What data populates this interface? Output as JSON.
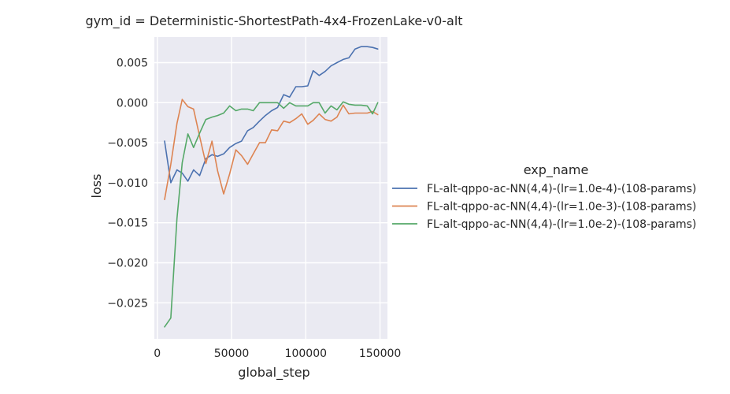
{
  "chart_data": {
    "type": "line",
    "title": "gym_id = Deterministic-ShortestPath-4x4-FrozenLake-v0-alt",
    "xlabel": "global_step",
    "ylabel": "loss",
    "xlim": [
      -2000,
      155000
    ],
    "ylim": [
      -0.0295,
      0.0082
    ],
    "x_ticks": [
      0,
      50000,
      100000,
      150000
    ],
    "x_tick_labels": [
      "0",
      "50000",
      "100000",
      "150000"
    ],
    "y_ticks": [
      -0.025,
      -0.02,
      -0.015,
      -0.01,
      -0.005,
      0.0,
      0.005
    ],
    "y_tick_labels": [
      "−0.025",
      "−0.020",
      "−0.015",
      "−0.010",
      "−0.005",
      "0.000",
      "0.005"
    ],
    "grid": true,
    "legend": {
      "title": "exp_name",
      "placement": "outside-right"
    },
    "series": [
      {
        "name": "FL-alt-qppo-ac-NN(4,4)-(lr=1.0e-4)-(108-params)",
        "color": "#4c72b0",
        "x": [
          4900,
          9100,
          13200,
          16800,
          20600,
          24400,
          28500,
          32700,
          36800,
          40600,
          44700,
          48700,
          52900,
          56700,
          60800,
          64600,
          68800,
          72800,
          77000,
          81000,
          85100,
          89100,
          93300,
          97300,
          101300,
          105000,
          109000,
          113000,
          117000,
          121000,
          125200,
          129000,
          133200,
          137200,
          141400,
          145000,
          148500
        ],
        "y": [
          -0.0048,
          -0.01,
          -0.0084,
          -0.0088,
          -0.0098,
          -0.0084,
          -0.0091,
          -0.007,
          -0.0065,
          -0.0067,
          -0.0064,
          -0.0056,
          -0.0051,
          -0.0048,
          -0.0035,
          -0.0031,
          -0.0023,
          -0.0016,
          -0.001,
          -0.0006,
          0.001,
          0.0007,
          0.002,
          0.002,
          0.0021,
          0.004,
          0.0034,
          0.0039,
          0.0046,
          0.005,
          0.0054,
          0.0056,
          0.0067,
          0.007,
          0.007,
          0.0069,
          0.0067
        ]
      },
      {
        "name": "FL-alt-qppo-ac-NN(4,4)-(lr=1.0e-3)-(108-params)",
        "color": "#dd8452",
        "x": [
          4900,
          9100,
          13200,
          16800,
          20600,
          24400,
          28500,
          32700,
          36800,
          40600,
          44700,
          48700,
          52900,
          56700,
          60800,
          64600,
          68800,
          72800,
          77000,
          81000,
          85100,
          89100,
          93300,
          97300,
          101300,
          105000,
          109000,
          113000,
          117000,
          121000,
          125200,
          129000,
          133200,
          137200,
          141400,
          145000,
          148500
        ],
        "y": [
          -0.0121,
          -0.0077,
          -0.0026,
          0.0004,
          -0.0005,
          -0.0008,
          -0.0042,
          -0.0076,
          -0.0048,
          -0.0085,
          -0.0114,
          -0.0089,
          -0.0059,
          -0.0066,
          -0.0077,
          -0.0064,
          -0.005,
          -0.005,
          -0.0034,
          -0.0035,
          -0.0023,
          -0.0025,
          -0.002,
          -0.0014,
          -0.0027,
          -0.0022,
          -0.0014,
          -0.0021,
          -0.0023,
          -0.0018,
          -0.0003,
          -0.0014,
          -0.0013,
          -0.0013,
          -0.0013,
          -0.0011,
          -0.0015
        ]
      },
      {
        "name": "FL-alt-qppo-ac-NN(4,4)-(lr=1.0e-2)-(108-params)",
        "color": "#55a868",
        "x": [
          4900,
          9100,
          13200,
          16800,
          20600,
          24400,
          28500,
          32700,
          36800,
          40600,
          44700,
          48700,
          52900,
          56700,
          60800,
          64600,
          68800,
          72800,
          77000,
          81000,
          85100,
          89100,
          93300,
          97300,
          101300,
          105000,
          109000,
          113000,
          117000,
          121000,
          125200,
          129000,
          133200,
          137200,
          141400,
          145000,
          148500
        ],
        "y": [
          -0.028,
          -0.0269,
          -0.0145,
          -0.0075,
          -0.0039,
          -0.0056,
          -0.0038,
          -0.0021,
          -0.0018,
          -0.0016,
          -0.0013,
          -0.0004,
          -0.001,
          -0.0008,
          -0.0008,
          -0.001,
          0.0,
          0.0,
          0.0,
          0.0,
          -0.0007,
          0.0,
          -0.0004,
          -0.0004,
          -0.0004,
          0.0,
          0.0,
          -0.0013,
          -0.0004,
          -0.0009,
          0.0001,
          -0.0002,
          -0.0003,
          -0.0003,
          -0.0004,
          -0.0014,
          0.0
        ]
      }
    ]
  }
}
